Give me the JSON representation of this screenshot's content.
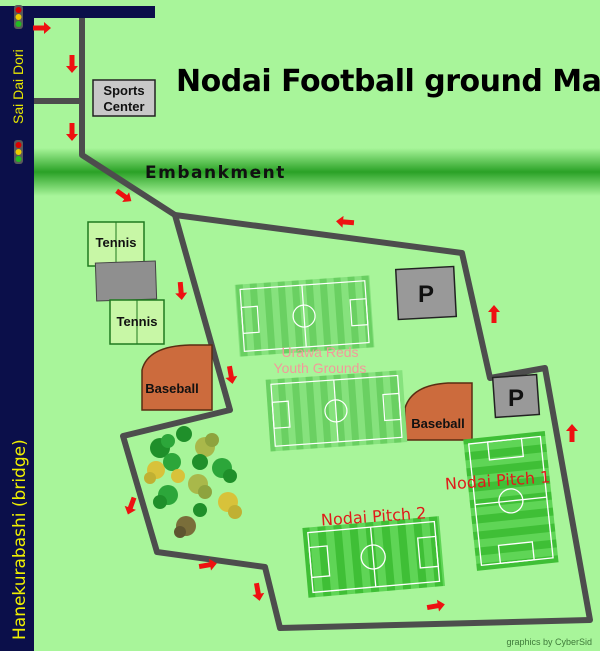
{
  "title": "Nodai Football ground Map",
  "labels": {
    "sports_center": [
      "Sports",
      "Center"
    ],
    "embankment": "Embankment",
    "sai_dai_dori": "Sai Dai Dori",
    "bridge": "Hanekurabashi (bridge)",
    "tennis": "Tennis",
    "baseball": "Baseball",
    "parking": "P",
    "urawa_reds": [
      "Urawa Reds",
      "Youth Grounds"
    ],
    "pitch_1": "Nodai Pitch 1",
    "pitch_2": "Nodai Pitch 2"
  },
  "credit": "graphics by CyberSid",
  "colors": {
    "background": "#a8f59a",
    "road": "#0b0f4a",
    "path": "#4d4d4d",
    "arrow": "#ee1111",
    "baseball": "#cc6b3d",
    "parking": "#999999",
    "pitch_dark": "#3fbf36",
    "pitch_light": "#62d95a",
    "embankment": "#2ea62a",
    "pitch_label": "#e01a1a",
    "youth_label": "#f2a0a0"
  }
}
